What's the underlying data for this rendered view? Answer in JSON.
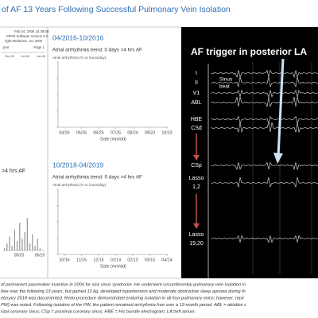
{
  "title": "of AF 13 Years Following Successful Pulmonary Vein Isolation",
  "left_panel": {
    "report_lines": [
      "Feb 24, 2006 15:39:58",
      "PPAR Software Version 5.0",
      "right Medtronic, Inc 2000",
      "port",
      "Page 1"
    ],
    "top_axis_labels": [
      "Sep 05",
      "Oct 05",
      "Jan 06"
    ],
    "label": ">4 hrs AF",
    "bars": [
      1,
      3,
      6,
      2,
      9,
      4,
      12,
      5,
      8,
      14,
      3,
      7,
      2,
      5,
      1
    ],
    "bar_ylim": [
      0,
      24
    ],
    "x_labels": [
      "05/20",
      "06/19"
    ]
  },
  "panels": [
    {
      "period": "04/2016-10/2016",
      "trend": "Atrial arrhythmia trend: 0 days >4 hrs AF",
      "y_label": "Atrial arrhythmia (% or hours/day)",
      "dates": [
        "04/26",
        "05/26",
        "06/25",
        "07/25",
        "08/24",
        "09/23",
        "10/23"
      ],
      "x_label": "Date (mm/dd)"
    },
    {
      "period": "10/2018-04/2019",
      "trend": "Atrial arrhythmia trend: 0 days >4 hrs AF",
      "y_label": "Atrial arrhythmia (% or hours/day)",
      "dates": [
        "10/16",
        "11/15",
        "12/15",
        "01/14",
        "02/13",
        "03/15",
        "04/14"
      ],
      "x_label": "Date (mm/dd)"
    }
  ],
  "ecg": {
    "title": "AF trigger in posterior LA",
    "sinus_label": [
      "Sinus",
      "beat"
    ],
    "leads": [
      [
        "I"
      ],
      [
        "II"
      ],
      [
        "V1"
      ],
      [
        "ABL"
      ],
      [
        "HBE"
      ],
      [
        "CSd"
      ],
      [
        "CSp"
      ],
      [
        "Lasso",
        "1,2"
      ],
      [
        "Lasso",
        "19,20"
      ]
    ]
  },
  "caption": [
    "of permanent pacemaker insertion in 2004 for sick sinus syndrome. He underwent circumferential pulmonary vein isolation in",
    "free over the following 13 years, but gained 12 kg, developed hypertension and moderate obstructive sleep apnoea during th",
    "ebruary 2018 was documented. Redo procedure demonstrated enduring isolation in all four pulmonary veins; however, repe",
    "PW) was noted. Following isolation of the PW, the patient remained arrhythmia free over a 12-month period. ABL = ablation c",
    "istal coronary sinus; CSp = proximal coronary sinus; HBE = His bundle electrogram; LA=left atrium."
  ]
}
